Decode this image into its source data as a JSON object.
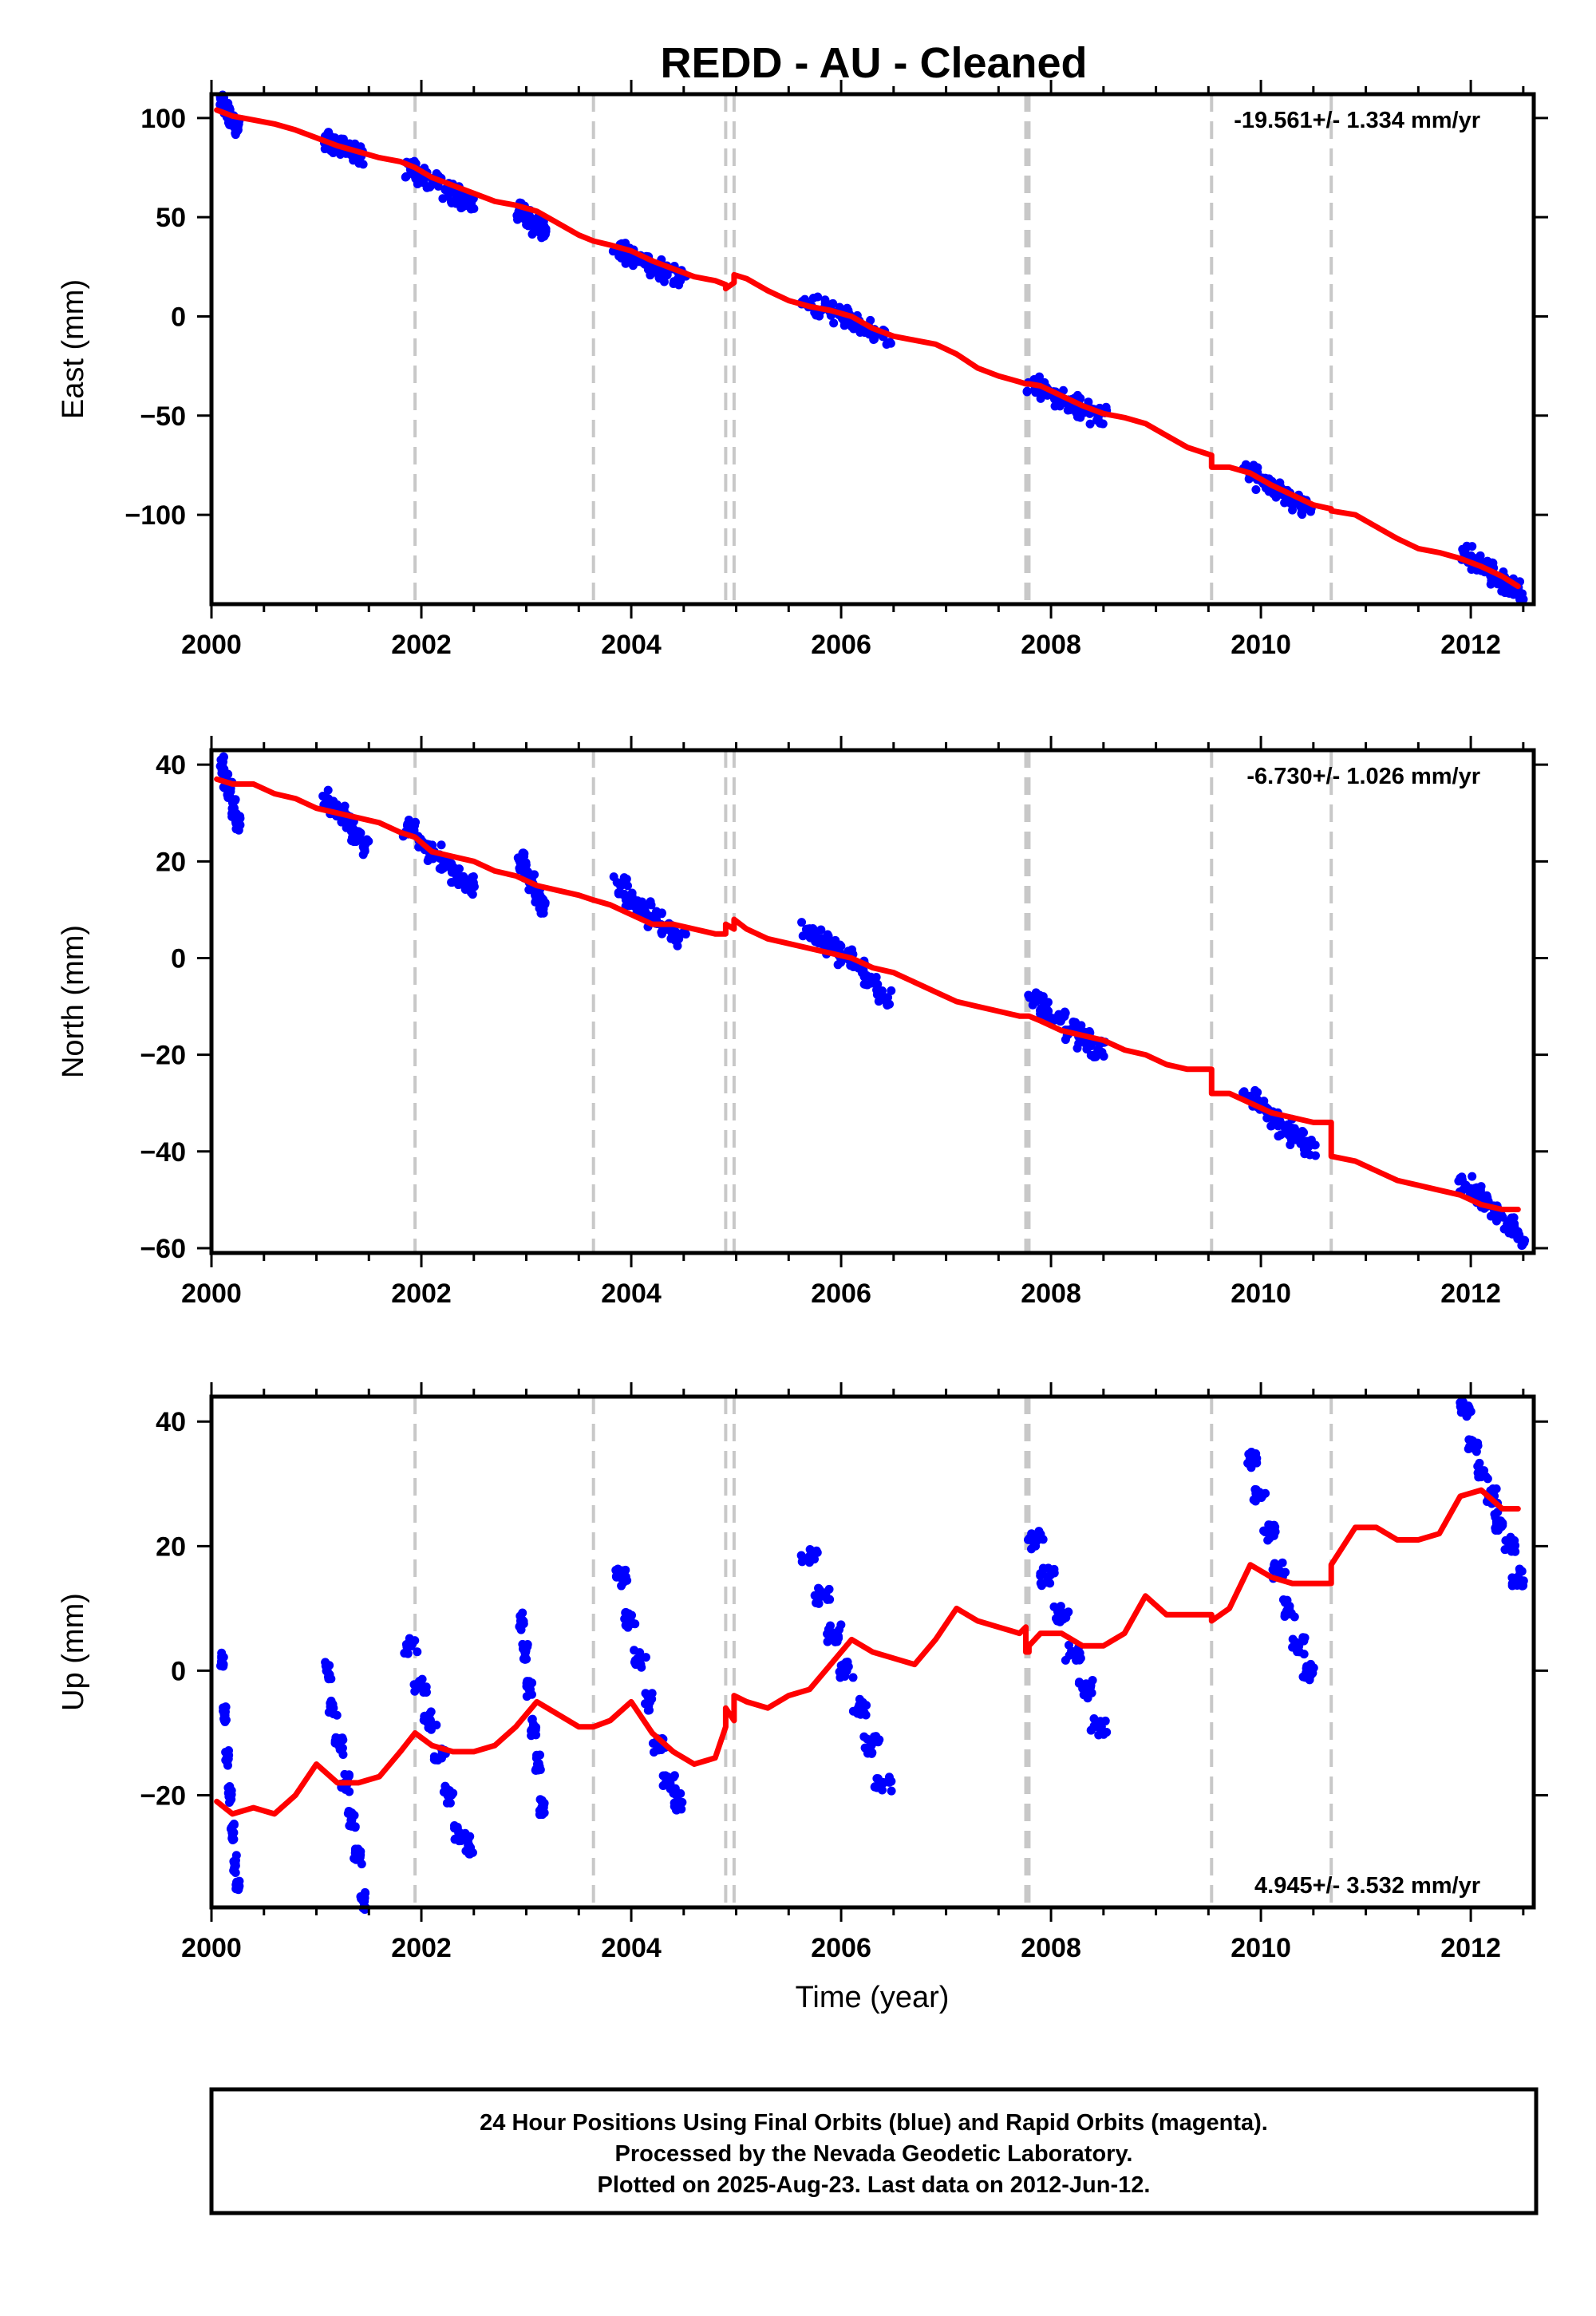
{
  "colors": {
    "data_points": "#0000ff",
    "model_line": "#ff0000",
    "steps": "#c8c8c8",
    "frame": "#000000"
  },
  "chart_data": {
    "type": "scatter",
    "title": "REDD  - AU - Cleaned",
    "xlabel": "Time (year)",
    "xlim": [
      2000.0,
      2012.6
    ],
    "xticks": [
      2000,
      2002,
      2004,
      2006,
      2008,
      2010,
      2012
    ],
    "step_epochs": [
      2001.94,
      2003.64,
      2004.9,
      2004.98,
      2007.76,
      2007.79,
      2009.53,
      2010.67
    ],
    "panels": [
      {
        "name": "East",
        "ylabel": "East (mm)",
        "ylim": [
          -145,
          112
        ],
        "yticks": [
          100,
          50,
          0,
          -50,
          -100
        ],
        "rate_label": "-19.561+/- 1.334 mm/yr",
        "rate_position": "top-right",
        "data_clusters": [
          {
            "start": 2000.1,
            "end": 2000.25,
            "values": [
              107,
              104,
              101,
              97,
              94
            ]
          },
          {
            "start": 2001.1,
            "end": 2001.4,
            "values": [
              89,
              87,
              85,
              83,
              81
            ]
          },
          {
            "start": 2001.9,
            "end": 2002.45,
            "values": [
              74,
              71,
              68,
              64,
              61,
              58
            ]
          },
          {
            "start": 2002.95,
            "end": 2003.15,
            "values": [
              53,
              50,
              46,
              44
            ]
          },
          {
            "start": 2003.9,
            "end": 2004.45,
            "values": [
              34,
              30,
              27,
              24,
              21,
              19
            ]
          },
          {
            "start": 2005.7,
            "end": 2006.4,
            "values": [
              6,
              4,
              1,
              -2,
              -6,
              -10
            ]
          },
          {
            "start": 2007.85,
            "end": 2008.45,
            "values": [
              -34,
              -37,
              -41,
              -44,
              -47,
              -50
            ]
          },
          {
            "start": 2009.9,
            "end": 2010.45,
            "values": [
              -79,
              -83,
              -87,
              -90,
              -93,
              -96
            ]
          },
          {
            "start": 2011.95,
            "end": 2012.45,
            "values": [
              -120,
              -124,
              -127,
              -131,
              -135,
              -138
            ]
          }
        ],
        "model": {
          "x": [
            2000.05,
            2000.2,
            2000.4,
            2000.6,
            2000.8,
            2001.0,
            2001.2,
            2001.4,
            2001.6,
            2001.8,
            2001.94,
            2001.94,
            2002.1,
            2002.3,
            2002.5,
            2002.7,
            2002.9,
            2003.1,
            2003.3,
            2003.5,
            2003.64,
            2003.64,
            2003.8,
            2004.0,
            2004.2,
            2004.4,
            2004.6,
            2004.8,
            2004.9,
            2004.9,
            2004.98,
            2004.98,
            2005.1,
            2005.3,
            2005.5,
            2005.7,
            2005.9,
            2006.1,
            2006.3,
            2006.5,
            2006.7,
            2006.9,
            2007.1,
            2007.3,
            2007.5,
            2007.7,
            2007.76,
            2007.76,
            2007.79,
            2007.79,
            2007.9,
            2008.1,
            2008.3,
            2008.5,
            2008.7,
            2008.9,
            2009.1,
            2009.3,
            2009.53,
            2009.53,
            2009.7,
            2009.9,
            2010.1,
            2010.3,
            2010.5,
            2010.67,
            2010.67,
            2010.9,
            2011.1,
            2011.3,
            2011.5,
            2011.7,
            2011.9,
            2012.1,
            2012.3,
            2012.45
          ],
          "y": [
            104,
            101,
            99,
            97,
            94,
            90,
            86,
            83,
            80,
            78,
            75,
            75,
            70,
            66,
            62,
            58,
            56,
            53,
            47,
            41,
            38,
            38,
            36,
            33,
            28,
            24,
            20,
            18,
            16,
            14,
            17,
            21,
            19,
            13,
            8,
            5,
            3,
            0,
            -6,
            -10,
            -12,
            -14,
            -19,
            -26,
            -30,
            -33,
            -34,
            -34,
            -34,
            -34,
            -35,
            -40,
            -45,
            -49,
            -51,
            -54,
            -60,
            -66,
            -70,
            -76,
            -76,
            -79,
            -85,
            -90,
            -95,
            -97,
            -98,
            -100,
            -106,
            -112,
            -117,
            -119,
            -122,
            -126,
            -131,
            -136
          ]
        }
      },
      {
        "name": "North",
        "ylabel": "North (mm)",
        "ylim": [
          -61,
          43
        ],
        "yticks": [
          40,
          20,
          0,
          -20,
          -40,
          -60
        ],
        "rate_label": "-6.730+/- 1.026 mm/yr",
        "rate_position": "top-right",
        "data_clusters": [
          {
            "start": 2000.1,
            "end": 2000.25,
            "values": [
              40,
              37,
              35,
              31,
              28
            ]
          },
          {
            "start": 2001.1,
            "end": 2001.45,
            "values": [
              33,
              31,
              30,
              28,
              25,
              23
            ]
          },
          {
            "start": 2001.9,
            "end": 2002.45,
            "values": [
              27,
              24,
              22,
              20,
              17,
              15
            ]
          },
          {
            "start": 2002.95,
            "end": 2003.15,
            "values": [
              20,
              18,
              16,
              13,
              11
            ]
          },
          {
            "start": 2003.9,
            "end": 2004.45,
            "values": [
              15,
              12,
              10,
              8,
              6,
              4
            ]
          },
          {
            "start": 2005.7,
            "end": 2006.4,
            "values": [
              6,
              4,
              2,
              0,
              -2,
              -4,
              -8
            ]
          },
          {
            "start": 2007.85,
            "end": 2008.45,
            "values": [
              -9,
              -11,
              -13,
              -15,
              -17,
              -19
            ]
          },
          {
            "start": 2009.9,
            "end": 2010.45,
            "values": [
              -29,
              -31,
              -33,
              -35,
              -37,
              -39
            ]
          },
          {
            "start": 2011.95,
            "end": 2012.45,
            "values": [
              -47,
              -49,
              -51,
              -53,
              -55,
              -58
            ]
          }
        ],
        "model": {
          "x": [
            2000.05,
            2000.2,
            2000.4,
            2000.6,
            2000.8,
            2001.0,
            2001.2,
            2001.4,
            2001.6,
            2001.8,
            2001.94,
            2001.94,
            2002.1,
            2002.3,
            2002.5,
            2002.7,
            2002.9,
            2003.1,
            2003.3,
            2003.5,
            2003.64,
            2003.64,
            2003.8,
            2004.0,
            2004.2,
            2004.4,
            2004.6,
            2004.8,
            2004.9,
            2004.9,
            2004.98,
            2004.98,
            2005.1,
            2005.3,
            2005.5,
            2005.7,
            2005.9,
            2006.1,
            2006.3,
            2006.5,
            2006.7,
            2006.9,
            2007.1,
            2007.3,
            2007.5,
            2007.7,
            2007.76,
            2007.76,
            2007.79,
            2007.79,
            2007.9,
            2008.1,
            2008.3,
            2008.5,
            2008.7,
            2008.9,
            2009.1,
            2009.3,
            2009.53,
            2009.53,
            2009.7,
            2009.9,
            2010.1,
            2010.3,
            2010.5,
            2010.67,
            2010.67,
            2010.9,
            2011.1,
            2011.3,
            2011.5,
            2011.7,
            2011.9,
            2012.1,
            2012.3,
            2012.45
          ],
          "y": [
            37,
            36,
            36,
            34,
            33,
            31,
            30,
            29,
            28,
            26,
            25,
            25,
            22,
            21,
            20,
            18,
            17,
            15,
            14,
            13,
            12,
            12,
            11,
            9,
            7,
            7,
            6,
            5,
            5,
            7,
            6,
            8,
            6,
            4,
            3,
            2,
            1,
            0,
            -2,
            -3,
            -5,
            -7,
            -9,
            -10,
            -11,
            -12,
            -12,
            -12,
            -12,
            -12,
            -13,
            -15,
            -16,
            -17,
            -19,
            -20,
            -22,
            -23,
            -23,
            -28,
            -28,
            -30,
            -32,
            -33,
            -34,
            -34,
            -41,
            -42,
            -44,
            -46,
            -47,
            -48,
            -49,
            -51,
            -52,
            -52
          ]
        }
      },
      {
        "name": "Up",
        "ylabel": "Up (mm)",
        "ylim": [
          -38,
          44
        ],
        "yticks": [
          40,
          20,
          0,
          -20
        ],
        "rate_label": "4.945+/- 3.532 mm/yr",
        "rate_position": "bottom-right",
        "data_clusters": [
          {
            "start": 2000.1,
            "end": 2000.25,
            "values": [
              2,
              -7,
              -14,
              -20,
              -26,
              -31,
              -35
            ]
          },
          {
            "start": 2001.1,
            "end": 2001.45,
            "values": [
              0,
              -6,
              -12,
              -18,
              -24,
              -30,
              -37
            ]
          },
          {
            "start": 2001.9,
            "end": 2002.45,
            "values": [
              4,
              -2,
              -8,
              -14,
              -20,
              -26,
              -28
            ]
          },
          {
            "start": 2002.95,
            "end": 2003.15,
            "values": [
              8,
              3,
              -3,
              -9,
              -15,
              -22
            ]
          },
          {
            "start": 2003.9,
            "end": 2004.45,
            "values": [
              15,
              8,
              2,
              -5,
              -12,
              -18,
              -21
            ]
          },
          {
            "start": 2005.7,
            "end": 2006.4,
            "values": [
              18,
              12,
              6,
              0,
              -6,
              -12,
              -18
            ]
          },
          {
            "start": 2007.85,
            "end": 2008.45,
            "values": [
              21,
              15,
              9,
              3,
              -3,
              -9
            ]
          },
          {
            "start": 2009.9,
            "end": 2010.45,
            "values": [
              34,
              28,
              22,
              16,
              10,
              4,
              0
            ]
          },
          {
            "start": 2011.95,
            "end": 2012.45,
            "values": [
              42,
              36,
              32,
              28,
              24,
              20,
              15
            ]
          }
        ],
        "model": {
          "x": [
            2000.05,
            2000.2,
            2000.4,
            2000.6,
            2000.8,
            2001.0,
            2001.2,
            2001.4,
            2001.6,
            2001.8,
            2001.94,
            2001.94,
            2002.1,
            2002.3,
            2002.5,
            2002.7,
            2002.9,
            2003.1,
            2003.3,
            2003.5,
            2003.64,
            2003.64,
            2003.8,
            2004.0,
            2004.2,
            2004.4,
            2004.6,
            2004.8,
            2004.9,
            2004.9,
            2004.98,
            2004.98,
            2005.1,
            2005.3,
            2005.5,
            2005.7,
            2005.9,
            2006.1,
            2006.3,
            2006.5,
            2006.7,
            2006.9,
            2007.1,
            2007.3,
            2007.5,
            2007.7,
            2007.76,
            2007.76,
            2007.79,
            2007.79,
            2007.9,
            2008.1,
            2008.3,
            2008.5,
            2008.7,
            2008.9,
            2009.1,
            2009.3,
            2009.53,
            2009.53,
            2009.7,
            2009.9,
            2010.1,
            2010.3,
            2010.5,
            2010.67,
            2010.67,
            2010.9,
            2011.1,
            2011.3,
            2011.5,
            2011.7,
            2011.9,
            2012.1,
            2012.3,
            2012.45
          ],
          "y": [
            -21,
            -23,
            -22,
            -23,
            -20,
            -15,
            -18,
            -18,
            -17,
            -13,
            -10,
            -10,
            -12,
            -13,
            -13,
            -12,
            -9,
            -5,
            -7,
            -9,
            -9,
            -9,
            -8,
            -5,
            -10,
            -13,
            -15,
            -14,
            -9,
            -6,
            -8,
            -4,
            -5,
            -6,
            -4,
            -3,
            1,
            5,
            3,
            2,
            1,
            5,
            10,
            8,
            7,
            6,
            7,
            3,
            3,
            4,
            6,
            6,
            4,
            4,
            6,
            12,
            9,
            9,
            9,
            8,
            10,
            17,
            15,
            14,
            14,
            14,
            17,
            23,
            23,
            21,
            21,
            22,
            28,
            29,
            26,
            26
          ]
        }
      }
    ]
  },
  "footer": {
    "line1": "24 Hour Positions Using Final Orbits (blue) and Rapid Orbits (magenta).",
    "line2": "Processed by the Nevada Geodetic Laboratory.",
    "line3": "Plotted on 2025-Aug-23. Last data on 2012-Jun-12."
  }
}
